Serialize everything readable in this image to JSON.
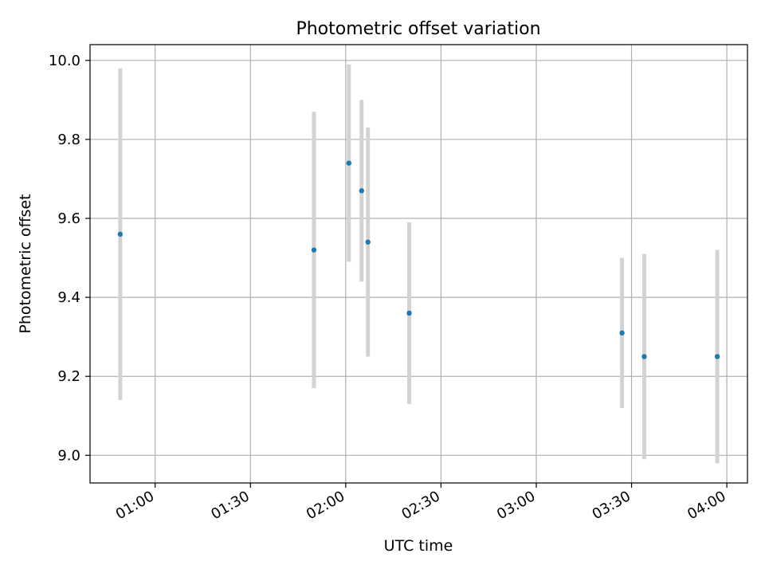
{
  "chart_data": {
    "type": "scatter",
    "title": "Photometric offset variation",
    "xlabel": "UTC time",
    "ylabel": "Photometric offset",
    "x_axis_kind": "time",
    "xlim": [
      "00:39:30",
      "04:06:30"
    ],
    "ylim": [
      8.93,
      10.04
    ],
    "grid": true,
    "x_ticks": [
      "01:00",
      "01:30",
      "02:00",
      "02:30",
      "03:00",
      "03:30",
      "04:00"
    ],
    "y_ticks": [
      "9.0",
      "9.2",
      "9.4",
      "9.6",
      "9.8",
      "10.0"
    ],
    "series": [
      {
        "x": [
          "00:49",
          "01:50",
          "02:01",
          "02:05",
          "02:07",
          "02:20",
          "03:27",
          "03:34",
          "03:57"
        ],
        "y": [
          9.56,
          9.52,
          9.74,
          9.67,
          9.54,
          9.36,
          9.31,
          9.25,
          9.25
        ],
        "yerr": [
          0.42,
          0.35,
          0.25,
          0.23,
          0.29,
          0.23,
          0.19,
          0.26,
          0.27
        ],
        "marker_color": "#1f77b4",
        "errorbar_color": "#d3d3d3"
      }
    ]
  }
}
